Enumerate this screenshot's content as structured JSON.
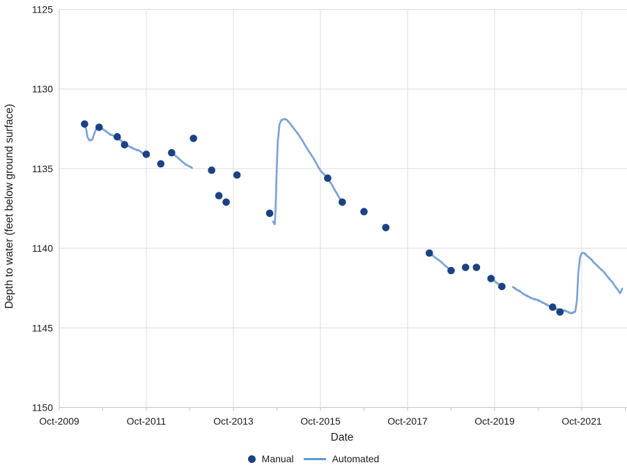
{
  "chart_data": {
    "type": "line",
    "title": "",
    "xlabel": "Date",
    "ylabel": "Depth to water (feet below ground surface)",
    "x_unit": "decimal_year (month values are start-of-month)",
    "y_axis": {
      "ticks": [
        1125,
        1130,
        1135,
        1140,
        1145,
        1150
      ],
      "min": 1125,
      "max": 1150,
      "inverted": true
    },
    "x_axis": {
      "labeled_ticks": [
        {
          "label": "Oct-2009",
          "year": 2009
        },
        {
          "label": "Oct-2011",
          "year": 2011
        },
        {
          "label": "Oct-2013",
          "year": 2013
        },
        {
          "label": "Oct-2015",
          "year": 2015
        },
        {
          "label": "Oct-2017",
          "year": 2017
        },
        {
          "label": "Oct-2019",
          "year": 2019
        },
        {
          "label": "Oct-2021",
          "year": 2021
        }
      ],
      "minor_tick_years": [
        2009,
        2010,
        2011,
        2012,
        2013,
        2014,
        2015,
        2016,
        2017,
        2018,
        2019,
        2020,
        2021,
        2022
      ],
      "grid_years": [
        2011,
        2013,
        2015,
        2017,
        2019,
        2021
      ]
    },
    "grid": true,
    "legend": {
      "position": "bottom",
      "entries": [
        "Manual",
        "Automated"
      ]
    },
    "colors": {
      "manual": "#1A4284",
      "automated": "#7AA3D8",
      "legend_automated": "#5B9BD5",
      "grid": "#DCDCDC",
      "axis": "#C2C2C2",
      "text": "#1A1A1A"
    },
    "series": [
      {
        "name": "Manual",
        "type": "scatter",
        "points": [
          [
            "May-2010",
            2010.333,
            1132.2
          ],
          [
            "Sep-2010",
            2010.667,
            1132.4
          ],
          [
            "Feb-2011",
            2011.083,
            1133.0
          ],
          [
            "Apr-2011",
            2011.25,
            1133.5
          ],
          [
            "Oct-2011",
            2011.75,
            1134.1
          ],
          [
            "Feb-2012",
            2012.083,
            1134.7
          ],
          [
            "May-2012",
            2012.333,
            1134.0
          ],
          [
            "Nov-2012",
            2012.833,
            1133.1
          ],
          [
            "Apr-2013",
            2013.25,
            1135.1
          ],
          [
            "Jun-2013",
            2013.417,
            1136.7
          ],
          [
            "Aug-2013",
            2013.583,
            1137.1
          ],
          [
            "Nov-2013",
            2013.833,
            1135.4
          ],
          [
            "Aug-2014",
            2014.583,
            1137.8
          ],
          [
            "Dec-2015",
            2015.917,
            1135.6
          ],
          [
            "Apr-2016",
            2016.25,
            1137.1
          ],
          [
            "Oct-2016",
            2016.75,
            1137.7
          ],
          [
            "Apr-2017",
            2017.25,
            1138.7
          ],
          [
            "Apr-2018",
            2018.25,
            1140.3
          ],
          [
            "Oct-2018",
            2018.75,
            1141.4
          ],
          [
            "Feb-2019",
            2019.083,
            1141.2
          ],
          [
            "May-2019",
            2019.333,
            1141.2
          ],
          [
            "Sep-2019",
            2019.667,
            1141.9
          ],
          [
            "Dec-2019",
            2019.917,
            1142.4
          ],
          [
            "Feb-2021",
            2021.083,
            1143.7
          ],
          [
            "Apr-2021",
            2021.25,
            1144.0
          ]
        ]
      },
      {
        "name": "Automated",
        "type": "line",
        "segments": [
          [
            [
              2010.333,
              1132.2
            ],
            [
              2010.37,
              1132.5
            ],
            [
              2010.4,
              1133.05
            ],
            [
              2010.45,
              1133.25
            ],
            [
              2010.51,
              1133.2
            ],
            [
              2010.55,
              1132.8
            ],
            [
              2010.6,
              1132.5
            ],
            [
              2010.667,
              1132.4
            ],
            [
              2010.75,
              1132.55
            ],
            [
              2010.9,
              1132.8
            ],
            [
              2011.083,
              1133.05
            ],
            [
              2011.25,
              1133.45
            ],
            [
              2011.45,
              1133.7
            ],
            [
              2011.6,
              1133.9
            ],
            [
              2011.75,
              1134.15
            ]
          ],
          [
            [
              2012.333,
              1134.0
            ],
            [
              2012.5,
              1134.4
            ],
            [
              2012.65,
              1134.7
            ],
            [
              2012.8,
              1134.95
            ]
          ],
          [
            [
              2014.66,
              1138.35
            ],
            [
              2014.7,
              1138.5
            ],
            [
              2014.72,
              1137.5
            ],
            [
              2014.74,
              1135.5
            ],
            [
              2014.77,
              1133.3
            ],
            [
              2014.81,
              1132.2
            ],
            [
              2014.85,
              1131.95
            ],
            [
              2014.92,
              1131.85
            ],
            [
              2014.97,
              1131.9
            ],
            [
              2015.05,
              1132.15
            ],
            [
              2015.15,
              1132.5
            ],
            [
              2015.25,
              1132.9
            ],
            [
              2015.35,
              1133.3
            ],
            [
              2015.45,
              1133.75
            ],
            [
              2015.55,
              1134.2
            ],
            [
              2015.65,
              1134.65
            ],
            [
              2015.75,
              1135.1
            ],
            [
              2015.83,
              1135.35
            ],
            [
              2015.917,
              1135.6
            ],
            [
              2016.0,
              1135.95
            ],
            [
              2016.083,
              1136.35
            ],
            [
              2016.17,
              1136.75
            ],
            [
              2016.25,
              1137.05
            ]
          ],
          [
            [
              2018.25,
              1140.3
            ],
            [
              2018.5,
              1140.8
            ],
            [
              2018.75,
              1141.4
            ]
          ],
          [
            [
              2019.667,
              1141.9
            ],
            [
              2019.917,
              1142.4
            ]
          ],
          [
            [
              2020.17,
              1142.45
            ],
            [
              2020.35,
              1142.75
            ],
            [
              2020.55,
              1143.05
            ],
            [
              2020.75,
              1143.3
            ],
            [
              2020.95,
              1143.55
            ],
            [
              2021.15,
              1143.8
            ],
            [
              2021.35,
              1143.95
            ],
            [
              2021.5,
              1144.05
            ],
            [
              2021.6,
              1144.0
            ],
            [
              2021.64,
              1143.3
            ],
            [
              2021.67,
              1141.6
            ],
            [
              2021.71,
              1140.6
            ],
            [
              2021.75,
              1140.3
            ],
            [
              2021.8,
              1140.25
            ],
            [
              2021.9,
              1140.55
            ],
            [
              2022.05,
              1140.95
            ],
            [
              2022.25,
              1141.5
            ],
            [
              2022.45,
              1142.1
            ],
            [
              2022.57,
              1142.55
            ],
            [
              2022.63,
              1142.8
            ],
            [
              2022.68,
              1142.55
            ]
          ]
        ]
      }
    ]
  }
}
